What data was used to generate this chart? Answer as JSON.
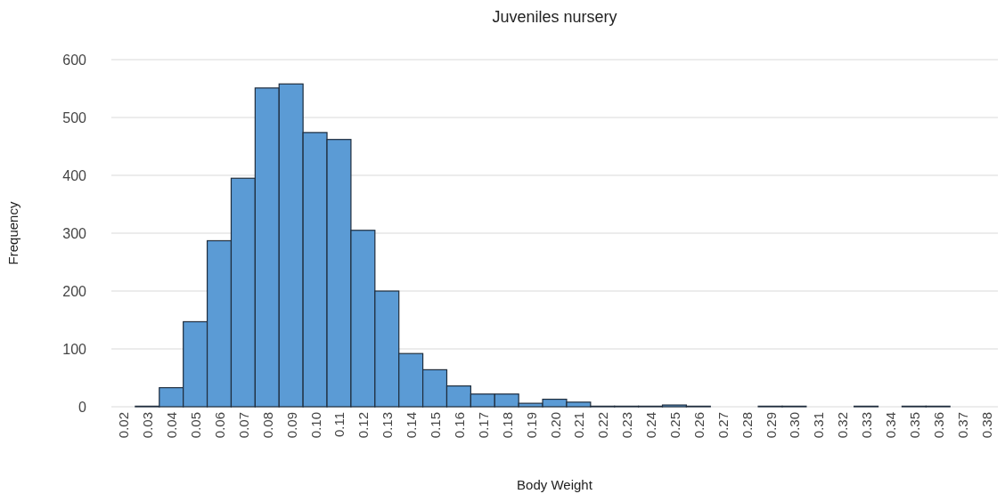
{
  "chart_data": {
    "type": "bar",
    "title": "Juveniles nursery",
    "xlabel": "Body Weight",
    "ylabel": "Frequency",
    "categories": [
      "0.02",
      "0.03",
      "0.04",
      "0.05",
      "0.06",
      "0.07",
      "0.08",
      "0.09",
      "0.10",
      "0.11",
      "0.12",
      "0.13",
      "0.14",
      "0.15",
      "0.16",
      "0.17",
      "0.18",
      "0.19",
      "0.20",
      "0.21",
      "0.22",
      "0.23",
      "0.24",
      "0.25",
      "0.26",
      "0.27",
      "0.28",
      "0.29",
      "0.30",
      "0.31",
      "0.32",
      "0.33",
      "0.34",
      "0.35",
      "0.36",
      "0.37",
      "0.38"
    ],
    "values": [
      0,
      1,
      33,
      147,
      287,
      395,
      551,
      558,
      474,
      462,
      305,
      200,
      92,
      64,
      36,
      22,
      22,
      6,
      13,
      8,
      1,
      1,
      1,
      3,
      1,
      0,
      0,
      1,
      1,
      0,
      0,
      1,
      0,
      1,
      1,
      0,
      0
    ],
    "color": "#5b9bd5",
    "ylim": [
      0,
      600
    ],
    "yticks": [
      0,
      100,
      200,
      300,
      400,
      500,
      600
    ],
    "grid": "y"
  }
}
